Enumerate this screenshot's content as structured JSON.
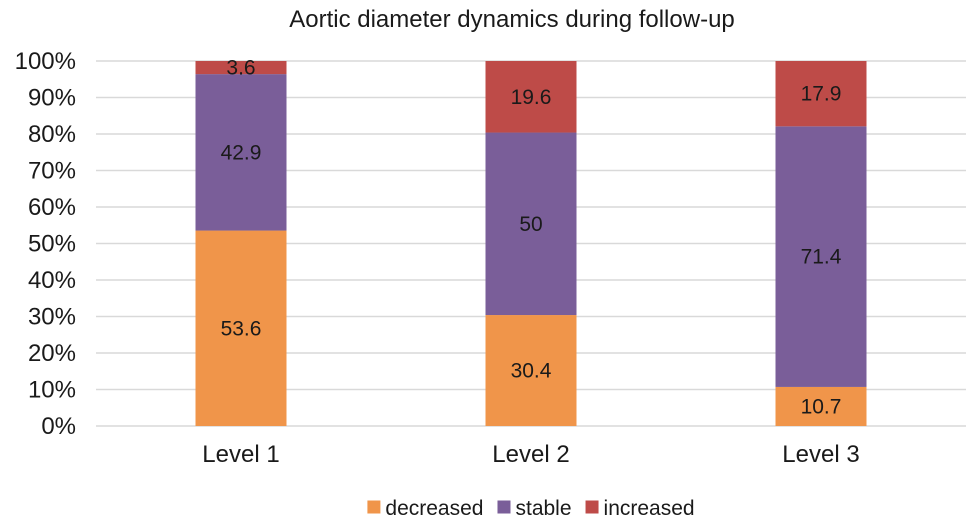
{
  "chart_data": {
    "type": "bar",
    "stacked": true,
    "title": "Aortic diameter dynamics during follow-up",
    "categories": [
      "Level 1",
      "Level 2",
      "Level 3"
    ],
    "series": [
      {
        "name": "decreased",
        "values": [
          53.6,
          30.4,
          10.7
        ],
        "color": "#F0954A",
        "labels": [
          "53.6",
          "30.4",
          "10.7"
        ]
      },
      {
        "name": "stable",
        "values": [
          42.9,
          50,
          71.4
        ],
        "color": "#7A5E99",
        "labels": [
          "42.9",
          "50",
          "71.4"
        ]
      },
      {
        "name": "increased",
        "values": [
          3.6,
          19.6,
          17.9
        ],
        "color": "#BE4B48",
        "labels": [
          "3.6",
          "19.6",
          "17.9"
        ]
      }
    ],
    "ylim": [
      0,
      100
    ],
    "yticks": [
      "0%",
      "10%",
      "20%",
      "30%",
      "40%",
      "50%",
      "60%",
      "70%",
      "80%",
      "90%",
      "100%"
    ],
    "grid": true,
    "legend_position": "bottom"
  }
}
